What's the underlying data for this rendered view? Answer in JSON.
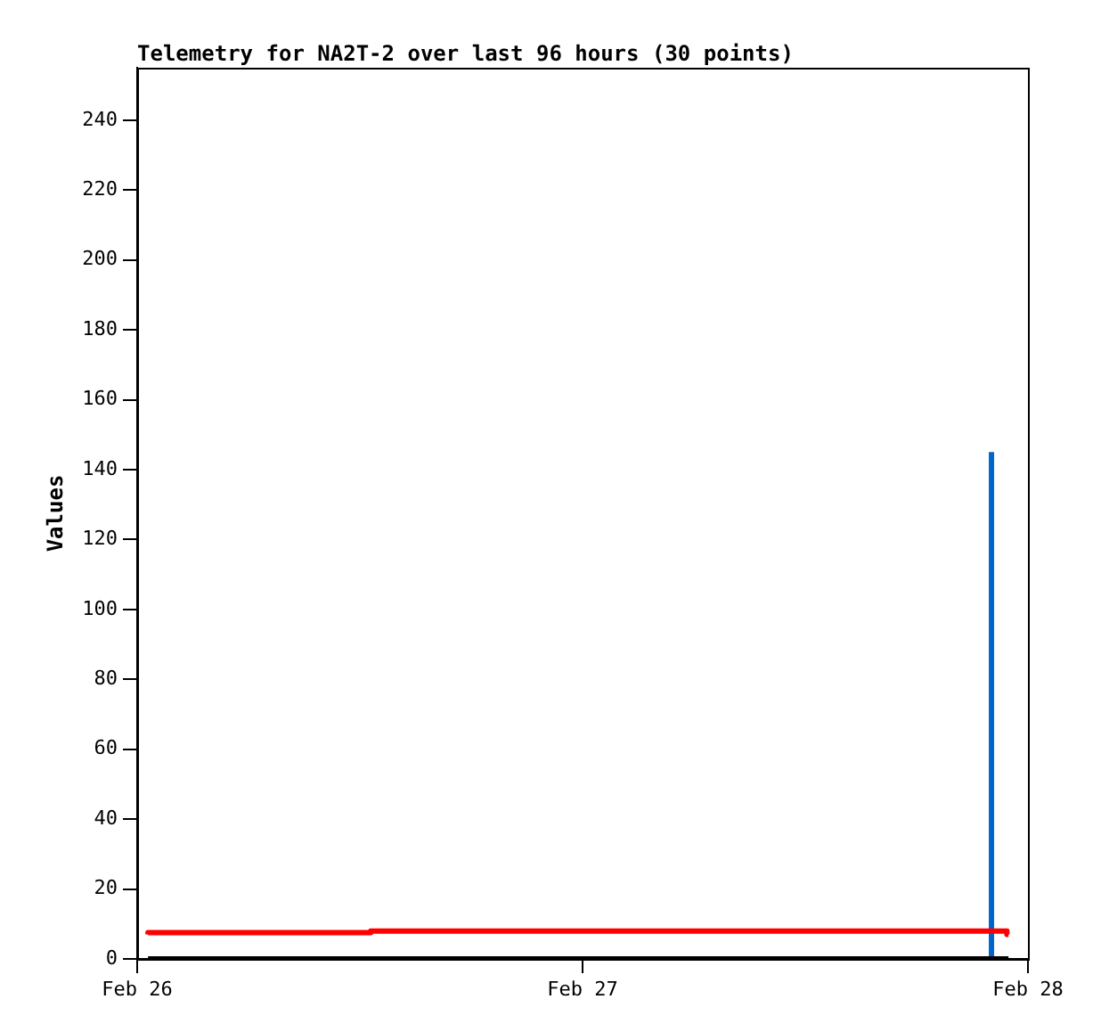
{
  "chart_data": {
    "type": "line",
    "title": "Telemetry for NA2T-2 over last 96 hours (30 points)",
    "ylabel": "Values",
    "xlim": [
      "--02-26",
      "--02-28"
    ],
    "xticks": [
      {
        "value": "--02-26",
        "label": "Feb 26"
      },
      {
        "value": "--02-27",
        "label": "Feb 27"
      },
      {
        "value": "--02-28",
        "label": "Feb 28"
      }
    ],
    "ylim": [
      0,
      255
    ],
    "yticks": [
      0,
      20,
      40,
      60,
      80,
      100,
      120,
      140,
      160,
      180,
      200,
      220,
      240
    ],
    "grid": false,
    "legend": false,
    "marker": "none",
    "line_style": "solid",
    "series": [
      {
        "color": "#000000",
        "x": [
          "--02-26T00:35",
          "--02-27T22:57"
        ],
        "values": [
          0,
          0
        ]
      },
      {
        "type": "step",
        "color": "#ff0000",
        "x": [
          "--02-26T00:35",
          "--02-26T12:35",
          "--02-27T10:50",
          "--02-27T22:52",
          "--02-27T22:57"
        ],
        "values": [
          7,
          7.5,
          8,
          8,
          7
        ]
      },
      {
        "color": "#0066cc",
        "x": [
          "--02-27T22:02",
          "--02-27T22:02"
        ],
        "values": [
          0,
          145
        ]
      }
    ]
  }
}
